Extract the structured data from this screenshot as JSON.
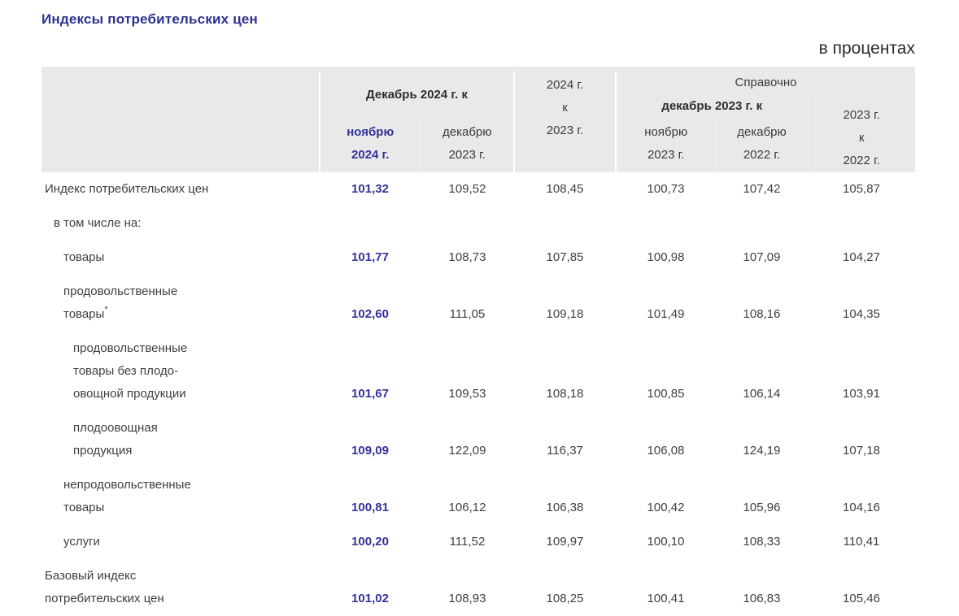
{
  "page": {
    "title": "Индексы потребительских цен",
    "unit_note": "в процентах"
  },
  "table": {
    "header": {
      "group_dec2024": "Декабрь 2024 г. к",
      "col_nov2024": "ноябрю\n2024 г.",
      "col_dec2023": "декабрю\n2023 г.",
      "col_2024_to_2023": "2024 г.\nк\n2023 г.",
      "group_spravochno": "Справочно",
      "group_dec2023": "декабрь 2023 г. к",
      "col_nov2023": "ноябрю\n2023 г.",
      "col_dec2022": "декабрю\n2022 г.",
      "col_2023_to_2022": "2023 г.\nк\n2022 г."
    },
    "rows": [
      {
        "label": "Индекс потребительских цен",
        "indent": 0,
        "values": [
          "101,32",
          "109,52",
          "108,45",
          "100,73",
          "107,42",
          "105,87"
        ]
      },
      {
        "label": "в том числе на:",
        "indent": 1,
        "values": [
          "",
          "",
          "",
          "",
          "",
          ""
        ]
      },
      {
        "label": "товары",
        "indent": 2,
        "values": [
          "101,77",
          "108,73",
          "107,85",
          "100,98",
          "107,09",
          "104,27"
        ]
      },
      {
        "label": "продовольственные\nтовары",
        "note": "*",
        "indent": 2,
        "values": [
          "102,60",
          "111,05",
          "109,18",
          "101,49",
          "108,16",
          "104,35"
        ]
      },
      {
        "label": "продовольственные\nтовары без плодо-\nовощной продукции",
        "indent": 3,
        "values": [
          "101,67",
          "109,53",
          "108,18",
          "100,85",
          "106,14",
          "103,91"
        ]
      },
      {
        "label": "плодоовощная\nпродукция",
        "indent": 3,
        "values": [
          "109,09",
          "122,09",
          "116,37",
          "106,08",
          "124,19",
          "107,18"
        ]
      },
      {
        "label": "непродовольственные\nтовары",
        "indent": 2,
        "values": [
          "100,81",
          "106,12",
          "106,38",
          "100,42",
          "105,96",
          "104,16"
        ]
      },
      {
        "label": "услуги",
        "indent": 2,
        "values": [
          "100,20",
          "111,52",
          "109,97",
          "100,10",
          "108,33",
          "110,41"
        ]
      },
      {
        "label": "Базовый индекс\nпотребительских цен",
        "indent": 0,
        "values": [
          "101,02",
          "108,93",
          "108,25",
          "100,41",
          "106,83",
          "105,46"
        ]
      }
    ],
    "colors": {
      "accent_blue": "#333399",
      "title_blue": "#2e3192",
      "header_bg": "#e9e9e9"
    }
  }
}
